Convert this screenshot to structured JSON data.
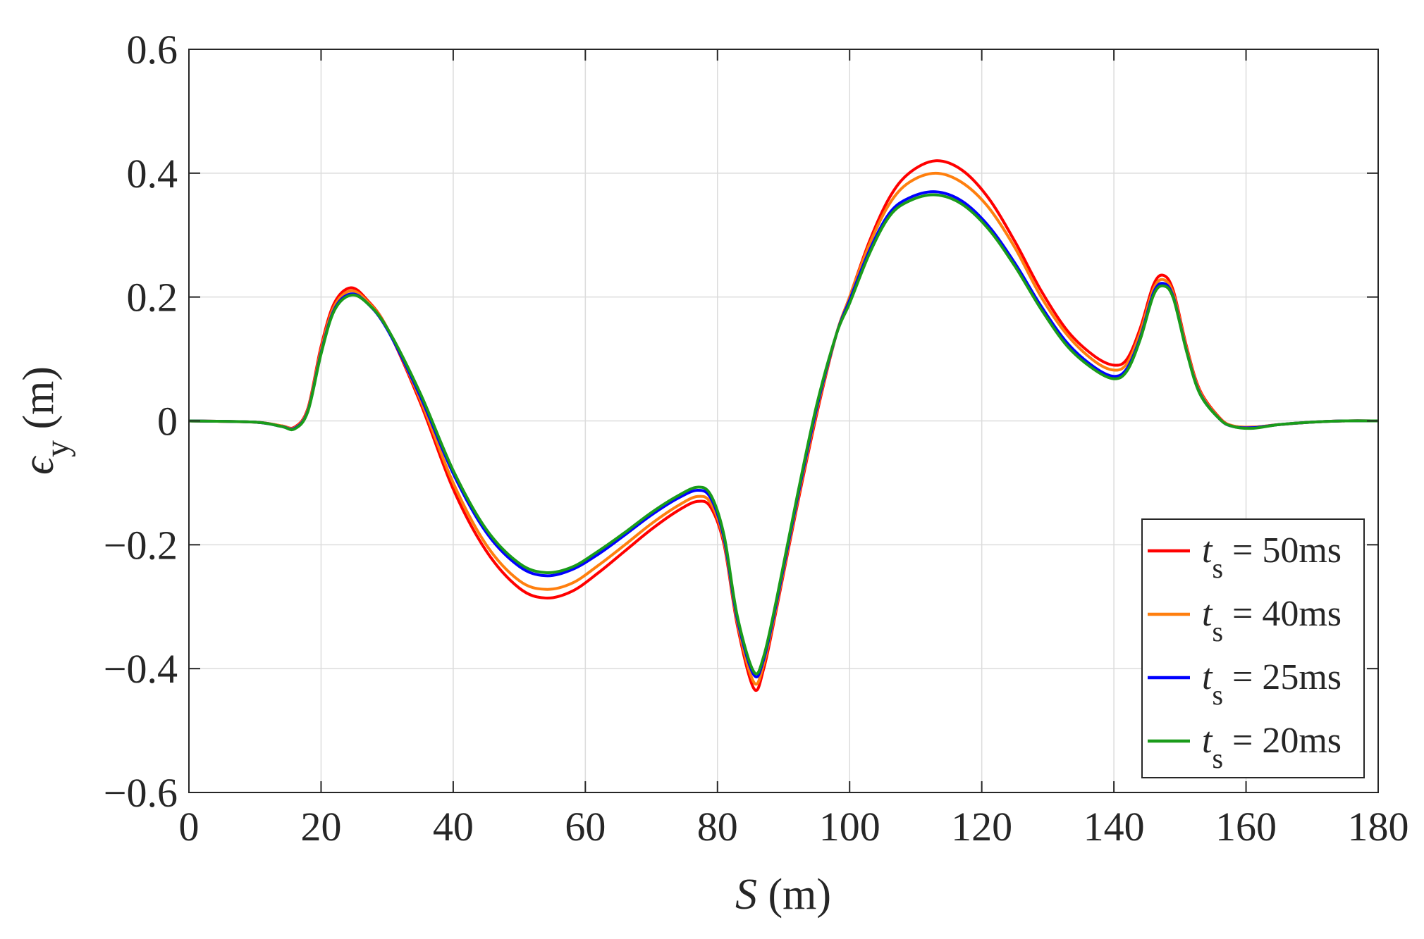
{
  "chart_data": {
    "type": "line",
    "xlabel": "S (m)",
    "ylabel": "ε_y (m)",
    "xlim": [
      0,
      180
    ],
    "ylim": [
      -0.6,
      0.6
    ],
    "grid": true,
    "legend_position": "bottom-right",
    "x_ticks": [
      0,
      20,
      40,
      60,
      80,
      100,
      120,
      140,
      160,
      180
    ],
    "y_ticks": [
      -0.6,
      -0.4,
      -0.2,
      0,
      0.2,
      0.4,
      0.6
    ],
    "x_tick_labels": [
      "0",
      "20",
      "40",
      "60",
      "80",
      "100",
      "120",
      "140",
      "160",
      "180"
    ],
    "y_tick_labels": [
      "−0.6",
      "−0.4",
      "−0.2",
      "0",
      "0.2",
      "0.4",
      "0.6"
    ],
    "x": [
      0,
      10,
      14,
      16,
      18,
      20,
      22,
      24.5,
      27,
      30,
      35,
      40,
      45,
      50,
      54,
      58,
      62,
      66,
      70,
      74,
      77,
      79,
      81,
      83,
      85.5,
      87,
      89,
      92,
      95,
      98,
      100,
      103,
      106,
      109,
      113,
      117,
      121,
      125,
      129,
      133,
      137,
      140,
      142,
      144,
      146,
      147.5,
      149,
      151,
      153,
      156,
      158,
      161,
      165,
      170,
      175,
      180
    ],
    "series": [
      {
        "name": "t_s = 50ms",
        "color": "#ff0000",
        "values": [
          0,
          -0.002,
          -0.008,
          -0.01,
          0.02,
          0.12,
          0.19,
          0.215,
          0.195,
          0.15,
          0.03,
          -0.11,
          -0.21,
          -0.27,
          -0.286,
          -0.275,
          -0.245,
          -0.21,
          -0.175,
          -0.145,
          -0.13,
          -0.14,
          -0.2,
          -0.33,
          -0.432,
          -0.4,
          -0.3,
          -0.14,
          0.01,
          0.14,
          0.2,
          0.29,
          0.36,
          0.4,
          0.42,
          0.405,
          0.36,
          0.29,
          0.21,
          0.145,
          0.105,
          0.09,
          0.1,
          0.15,
          0.22,
          0.235,
          0.21,
          0.12,
          0.05,
          0.005,
          -0.008,
          -0.01,
          -0.006,
          -0.002,
          0,
          0
        ]
      },
      {
        "name": "t_s = 40ms",
        "color": "#ff7f0e",
        "values": [
          0,
          -0.002,
          -0.008,
          -0.011,
          0.018,
          0.115,
          0.185,
          0.21,
          0.193,
          0.15,
          0.035,
          -0.1,
          -0.2,
          -0.258,
          -0.272,
          -0.262,
          -0.233,
          -0.2,
          -0.166,
          -0.137,
          -0.122,
          -0.133,
          -0.195,
          -0.325,
          -0.422,
          -0.392,
          -0.295,
          -0.135,
          0.015,
          0.14,
          0.2,
          0.285,
          0.35,
          0.385,
          0.4,
          0.385,
          0.345,
          0.28,
          0.2,
          0.138,
          0.097,
          0.082,
          0.093,
          0.143,
          0.213,
          0.228,
          0.205,
          0.117,
          0.048,
          0.004,
          -0.008,
          -0.01,
          -0.006,
          -0.002,
          0,
          0
        ]
      },
      {
        "name": "t_s = 25ms",
        "color": "#0000ff",
        "values": [
          0,
          -0.002,
          -0.009,
          -0.012,
          0.016,
          0.11,
          0.18,
          0.205,
          0.19,
          0.148,
          0.04,
          -0.085,
          -0.18,
          -0.235,
          -0.25,
          -0.24,
          -0.215,
          -0.184,
          -0.152,
          -0.125,
          -0.112,
          -0.125,
          -0.19,
          -0.32,
          -0.41,
          -0.385,
          -0.29,
          -0.13,
          0.02,
          0.14,
          0.195,
          0.275,
          0.335,
          0.36,
          0.37,
          0.355,
          0.315,
          0.255,
          0.185,
          0.125,
          0.087,
          0.072,
          0.085,
          0.135,
          0.207,
          0.222,
          0.2,
          0.113,
          0.045,
          0.003,
          -0.009,
          -0.011,
          -0.006,
          -0.002,
          0,
          0
        ]
      },
      {
        "name": "t_s = 20ms",
        "color": "#1a9c1a",
        "values": [
          0,
          -0.002,
          -0.009,
          -0.013,
          0.015,
          0.108,
          0.178,
          0.203,
          0.19,
          0.15,
          0.045,
          -0.08,
          -0.175,
          -0.23,
          -0.245,
          -0.236,
          -0.21,
          -0.18,
          -0.148,
          -0.121,
          -0.107,
          -0.12,
          -0.185,
          -0.315,
          -0.405,
          -0.38,
          -0.285,
          -0.125,
          0.025,
          0.14,
          0.19,
          0.27,
          0.33,
          0.355,
          0.365,
          0.35,
          0.31,
          0.25,
          0.18,
          0.12,
          0.083,
          0.068,
          0.081,
          0.132,
          0.203,
          0.218,
          0.198,
          0.112,
          0.044,
          0.003,
          -0.009,
          -0.012,
          -0.006,
          -0.002,
          0,
          0
        ]
      }
    ]
  }
}
